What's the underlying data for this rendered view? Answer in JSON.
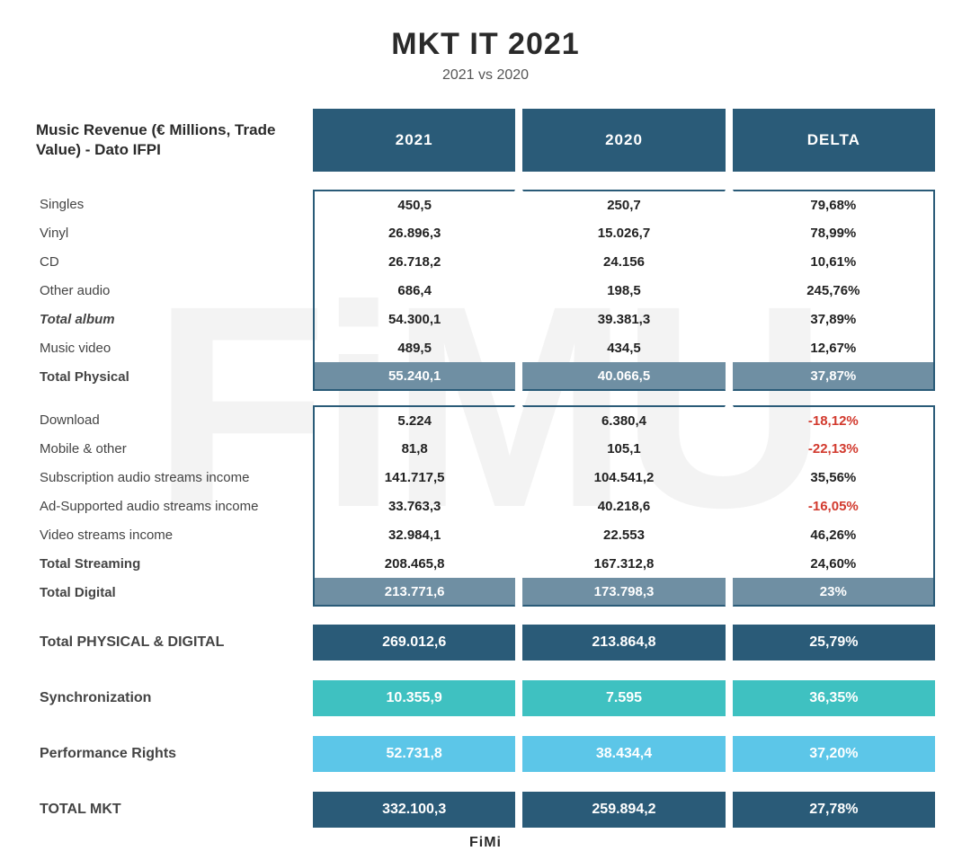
{
  "watermark_text": "FiMU",
  "title": "MKT IT 2021",
  "subtitle": "2021 vs 2020",
  "header_label": "Music Revenue (€ Millions, Trade Value) - Dato IFPI",
  "columns": [
    "2021",
    "2020",
    "DELTA"
  ],
  "colors": {
    "header_bg": "#2a5b78",
    "subtotal_band_bg": "#6f8fa3",
    "bar_dark_bg": "#2a5b78",
    "bar_teal_bg": "#3fc1c1",
    "bar_light_bg": "#5cc6e8",
    "negative_text": "#d23a2e",
    "border": "#2a5b78",
    "text": "#2a2a2a"
  },
  "group_physical": {
    "rows": [
      {
        "label": "Singles",
        "y2021": "450,5",
        "y2020": "250,7",
        "delta": "79,68%"
      },
      {
        "label": "Vinyl",
        "y2021": "26.896,3",
        "y2020": "15.026,7",
        "delta": "78,99%"
      },
      {
        "label": "CD",
        "y2021": "26.718,2",
        "y2020": "24.156",
        "delta": "10,61%"
      },
      {
        "label": "Other audio",
        "y2021": "686,4",
        "y2020": "198,5",
        "delta": "245,76%"
      },
      {
        "label": "Total album",
        "style": "bi",
        "y2021": "54.300,1",
        "y2020": "39.381,3",
        "delta": "37,89%"
      },
      {
        "label": "Music video",
        "y2021": "489,5",
        "y2020": "434,5",
        "delta": "12,67%"
      }
    ],
    "subtotal": {
      "label": "Total Physical",
      "y2021": "55.240,1",
      "y2020": "40.066,5",
      "delta": "37,87%"
    }
  },
  "group_digital": {
    "rows": [
      {
        "label": "Download",
        "y2021": "5.224",
        "y2020": "6.380,4",
        "delta": "-18,12%",
        "neg": true
      },
      {
        "label": "Mobile & other",
        "y2021": "81,8",
        "y2020": "105,1",
        "delta": "-22,13%",
        "neg": true
      },
      {
        "label": "Subscription audio streams income",
        "y2021": "141.717,5",
        "y2020": "104.541,2",
        "delta": "35,56%"
      },
      {
        "label": "Ad-Supported audio streams income",
        "y2021": "33.763,3",
        "y2020": "40.218,6",
        "delta": "-16,05%",
        "neg": true
      },
      {
        "label": "Video streams income",
        "y2021": "32.984,1",
        "y2020": "22.553",
        "delta": "46,26%"
      },
      {
        "label": "Total Streaming",
        "style": "b",
        "y2021": "208.465,8",
        "y2020": "167.312,8",
        "delta": "24,60%"
      }
    ],
    "subtotal": {
      "label": "Total Digital",
      "y2021": "213.771,6",
      "y2020": "173.798,3",
      "delta": "23%"
    }
  },
  "bars": [
    {
      "label": "Total PHYSICAL & DIGITAL",
      "y2021": "269.012,6",
      "y2020": "213.864,8",
      "delta": "25,79%",
      "bg": "#2a5b78"
    },
    {
      "label": "Synchronization",
      "y2021": "10.355,9",
      "y2020": "7.595",
      "delta": "36,35%",
      "bg": "#3fc1c1"
    },
    {
      "label": "Performance Rights",
      "y2021": "52.731,8",
      "y2020": "38.434,4",
      "delta": "37,20%",
      "bg": "#5cc6e8"
    },
    {
      "label": "TOTAL MKT",
      "y2021": "332.100,3",
      "y2020": "259.894,2",
      "delta": "27,78%",
      "bg": "#2a5b78"
    }
  ],
  "footer": "FiMi"
}
